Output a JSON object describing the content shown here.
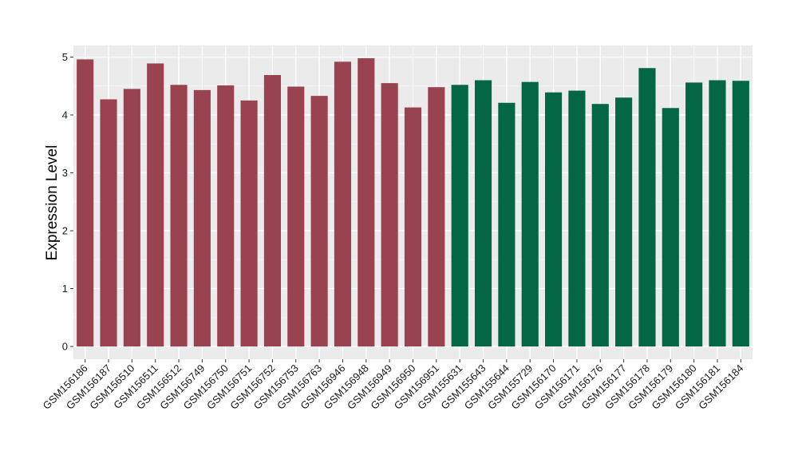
{
  "chart_data": {
    "type": "bar",
    "title": "",
    "xlabel": "",
    "ylabel": "Expression Level",
    "ylim": [
      -0.22,
      5.2
    ],
    "yticks": [
      "0",
      "1",
      "2",
      "3",
      "4",
      "5"
    ],
    "grid": true,
    "legend": "none",
    "panel_background": "#ebebeb",
    "categories": [
      "GSM156186",
      "GSM156187",
      "GSM156510",
      "GSM156511",
      "GSM156512",
      "GSM156749",
      "GSM156750",
      "GSM156751",
      "GSM156752",
      "GSM156753",
      "GSM156763",
      "GSM156946",
      "GSM156948",
      "GSM156949",
      "GSM156950",
      "GSM156951",
      "GSM155631",
      "GSM155643",
      "GSM155644",
      "GSM155729",
      "GSM156170",
      "GSM156171",
      "GSM156176",
      "GSM156177",
      "GSM156178",
      "GSM156179",
      "GSM156180",
      "GSM156181",
      "GSM156184"
    ],
    "values": [
      4.96,
      4.27,
      4.45,
      4.89,
      4.52,
      4.43,
      4.51,
      4.25,
      4.69,
      4.49,
      4.33,
      4.92,
      4.98,
      4.55,
      4.13,
      4.48,
      4.52,
      4.6,
      4.21,
      4.57,
      4.39,
      4.42,
      4.19,
      4.3,
      4.81,
      4.12,
      4.56,
      4.6,
      4.59
    ],
    "groups": [
      0,
      0,
      0,
      0,
      0,
      0,
      0,
      0,
      0,
      0,
      0,
      0,
      0,
      0,
      0,
      0,
      1,
      1,
      1,
      1,
      1,
      1,
      1,
      1,
      1,
      1,
      1,
      1,
      1
    ],
    "group_colors": [
      "#9a4350",
      "#036644"
    ]
  }
}
